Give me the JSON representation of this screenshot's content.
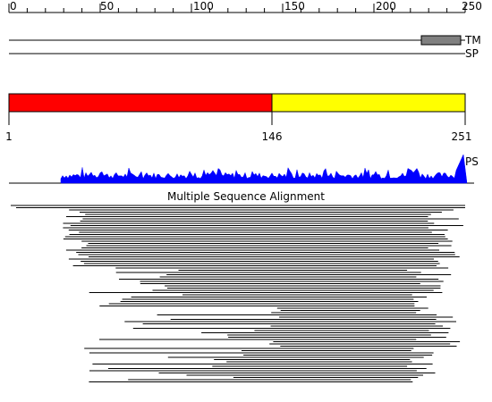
{
  "ruler": {
    "ticks": [
      "0",
      "50",
      "100",
      "150",
      "200",
      "250"
    ]
  },
  "features": {
    "tm_label": "TM",
    "sp_label": "SP",
    "tm_color": "#808080"
  },
  "domains": {
    "colors": [
      "#ff0000",
      "#ffff00"
    ],
    "labels": [
      "1",
      "146",
      "251"
    ]
  },
  "profile": {
    "label": "PS",
    "color": "#0000ff"
  },
  "msa": {
    "title": "Multiple Sequence Alignment",
    "line_color": "#000000"
  }
}
